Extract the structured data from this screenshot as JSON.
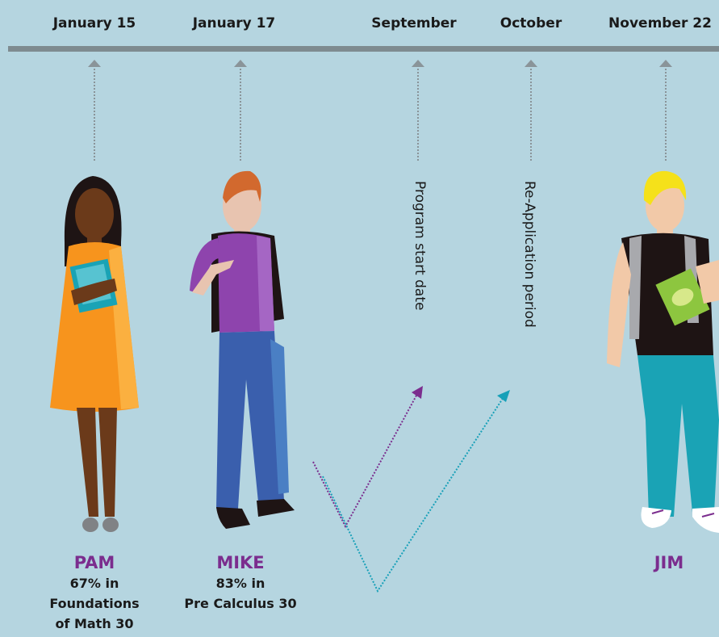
{
  "timeline": [
    {
      "label": "January 15"
    },
    {
      "label": "January 17"
    },
    {
      "label": "September"
    },
    {
      "label": "October"
    },
    {
      "label": "November 22"
    }
  ],
  "annotations": [
    "Program start date",
    "Re-Application period"
  ],
  "people": [
    {
      "name": "PAM",
      "detail": [
        "67% in",
        "Foundations",
        "of Math 30"
      ]
    },
    {
      "name": "MIKE",
      "detail": [
        "83% in",
        "Pre Calculus 30"
      ]
    },
    {
      "name": "JIM",
      "detail": []
    }
  ]
}
